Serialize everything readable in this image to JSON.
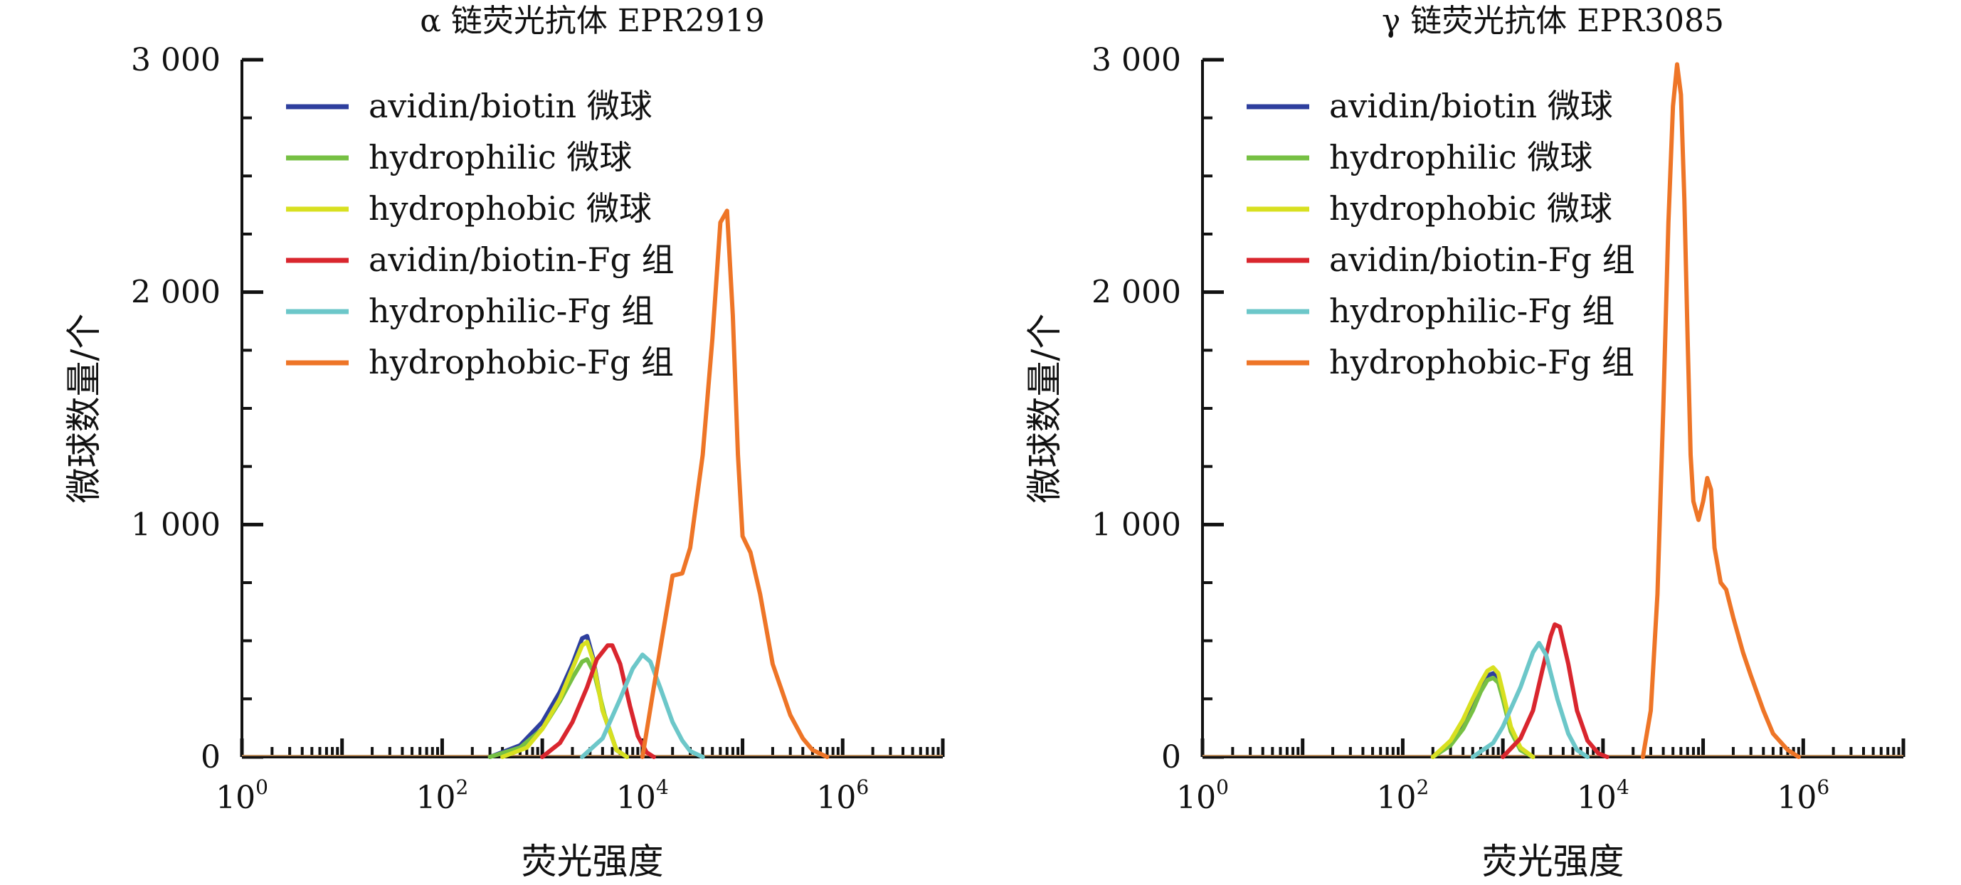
{
  "chart_data": [
    {
      "type": "line",
      "title": "α 链荧光抗体 EPR2919",
      "xlabel": "荧光强度",
      "ylabel": "微球数量/个",
      "xscale": "log",
      "xlim": [
        1,
        10000000
      ],
      "ylim": [
        0,
        3000
      ],
      "grid": false,
      "legend_position": "top-left",
      "x_ticks": [
        {
          "base": "10",
          "exp": "0"
        },
        {
          "base": "10",
          "exp": "2"
        },
        {
          "base": "10",
          "exp": "4"
        },
        {
          "base": "10",
          "exp": "6"
        }
      ],
      "y_ticks": [
        "0",
        "1 000",
        "2 000",
        "3 000"
      ],
      "y_tick_values": [
        0,
        1000,
        2000,
        3000
      ],
      "series": [
        {
          "name": "avidin/biotin 微球",
          "color": "#2e3f9e",
          "x": [
            300,
            600,
            1000,
            1500,
            2000,
            2500,
            2800,
            3200,
            4000,
            5500,
            7000
          ],
          "y": [
            0,
            50,
            150,
            280,
            400,
            510,
            520,
            430,
            200,
            30,
            0
          ]
        },
        {
          "name": "hydrophilic 微球",
          "color": "#76c043",
          "x": [
            300,
            600,
            1000,
            1500,
            2000,
            2500,
            2800,
            3300,
            4200,
            5500,
            7000
          ],
          "y": [
            0,
            40,
            120,
            240,
            340,
            410,
            420,
            360,
            180,
            30,
            0
          ]
        },
        {
          "name": "hydrophobic 微球",
          "color": "#d8e020",
          "x": [
            400,
            700,
            1000,
            1500,
            2000,
            2500,
            2800,
            3200,
            4000,
            5500,
            7000
          ],
          "y": [
            0,
            40,
            120,
            250,
            380,
            480,
            495,
            420,
            200,
            30,
            0
          ]
        },
        {
          "name": "avidin/biotin-Fg 组",
          "color": "#d9262e",
          "x": [
            1000,
            1500,
            2000,
            2800,
            3500,
            4500,
            5000,
            6000,
            7500,
            9000,
            11000,
            13000
          ],
          "y": [
            0,
            60,
            150,
            300,
            420,
            480,
            480,
            400,
            220,
            90,
            20,
            0
          ]
        },
        {
          "name": "hydrophilic-Fg 组",
          "color": "#6cc7c9",
          "x": [
            2500,
            4000,
            6000,
            8000,
            10000,
            12000,
            15000,
            20000,
            25000,
            30000,
            40000
          ],
          "y": [
            0,
            80,
            250,
            380,
            440,
            410,
            300,
            150,
            70,
            25,
            0
          ]
        },
        {
          "name": "hydrophobic-Fg 组",
          "color": "#ee7527",
          "x": [
            10000,
            13000,
            17000,
            20000,
            25000,
            30000,
            40000,
            50000,
            60000,
            70000,
            80000,
            90000,
            100000,
            120000,
            150000,
            200000,
            300000,
            400000,
            500000,
            700000
          ],
          "y": [
            0,
            300,
            600,
            780,
            790,
            900,
            1300,
            1800,
            2300,
            2350,
            1900,
            1300,
            950,
            880,
            700,
            400,
            180,
            80,
            30,
            0
          ]
        }
      ]
    },
    {
      "type": "line",
      "title": "γ 链荧光抗体 EPR3085",
      "xlabel": "荧光强度",
      "ylabel": "微球数量/个",
      "xscale": "log",
      "xlim": [
        1,
        10000000
      ],
      "ylim": [
        0,
        3000
      ],
      "grid": false,
      "legend_position": "top-left",
      "x_ticks": [
        {
          "base": "10",
          "exp": "0"
        },
        {
          "base": "10",
          "exp": "2"
        },
        {
          "base": "10",
          "exp": "4"
        },
        {
          "base": "10",
          "exp": "6"
        }
      ],
      "y_ticks": [
        "0",
        "1 000",
        "2 000",
        "3 000"
      ],
      "y_tick_values": [
        0,
        1000,
        2000,
        3000
      ],
      "series": [
        {
          "name": "avidin/biotin 微球",
          "color": "#2e3f9e",
          "x": [
            200,
            300,
            400,
            500,
            600,
            700,
            800,
            900,
            1000,
            1200,
            1500,
            2000
          ],
          "y": [
            0,
            60,
            140,
            220,
            300,
            350,
            360,
            340,
            260,
            120,
            30,
            0
          ]
        },
        {
          "name": "hydrophilic 微球",
          "color": "#76c043",
          "x": [
            200,
            300,
            400,
            500,
            600,
            700,
            800,
            900,
            1000,
            1200,
            1500,
            2000
          ],
          "y": [
            0,
            50,
            120,
            200,
            280,
            330,
            340,
            320,
            250,
            110,
            30,
            0
          ]
        },
        {
          "name": "hydrophobic 微球",
          "color": "#d8e020",
          "x": [
            200,
            300,
            400,
            500,
            600,
            700,
            800,
            900,
            1000,
            1200,
            1500,
            2000
          ],
          "y": [
            0,
            70,
            160,
            250,
            320,
            370,
            385,
            360,
            280,
            130,
            40,
            0
          ]
        },
        {
          "name": "avidin/biotin-Fg 组",
          "color": "#d9262e",
          "x": [
            1000,
            1500,
            2000,
            2500,
            3000,
            3300,
            3700,
            4500,
            5500,
            7000,
            9000,
            11000
          ],
          "y": [
            0,
            80,
            200,
            380,
            520,
            570,
            560,
            400,
            200,
            70,
            15,
            0
          ]
        },
        {
          "name": "hydrophilic-Fg 组",
          "color": "#6cc7c9",
          "x": [
            500,
            800,
            1000,
            1500,
            2000,
            2300,
            2700,
            3500,
            4500,
            5500,
            7000
          ],
          "y": [
            0,
            60,
            130,
            300,
            450,
            490,
            440,
            250,
            100,
            30,
            0
          ]
        },
        {
          "name": "hydrophobic-Fg 组",
          "color": "#ee7527",
          "x": [
            25000,
            30000,
            35000,
            40000,
            45000,
            50000,
            55000,
            60000,
            65000,
            70000,
            75000,
            80000,
            90000,
            100000,
            110000,
            120000,
            130000,
            150000,
            170000,
            200000,
            250000,
            300000,
            400000,
            500000,
            700000,
            900000
          ],
          "y": [
            0,
            200,
            700,
            1500,
            2300,
            2800,
            2980,
            2850,
            2400,
            1800,
            1300,
            1100,
            1020,
            1100,
            1200,
            1150,
            900,
            750,
            720,
            600,
            450,
            350,
            200,
            100,
            30,
            0
          ]
        }
      ]
    }
  ]
}
